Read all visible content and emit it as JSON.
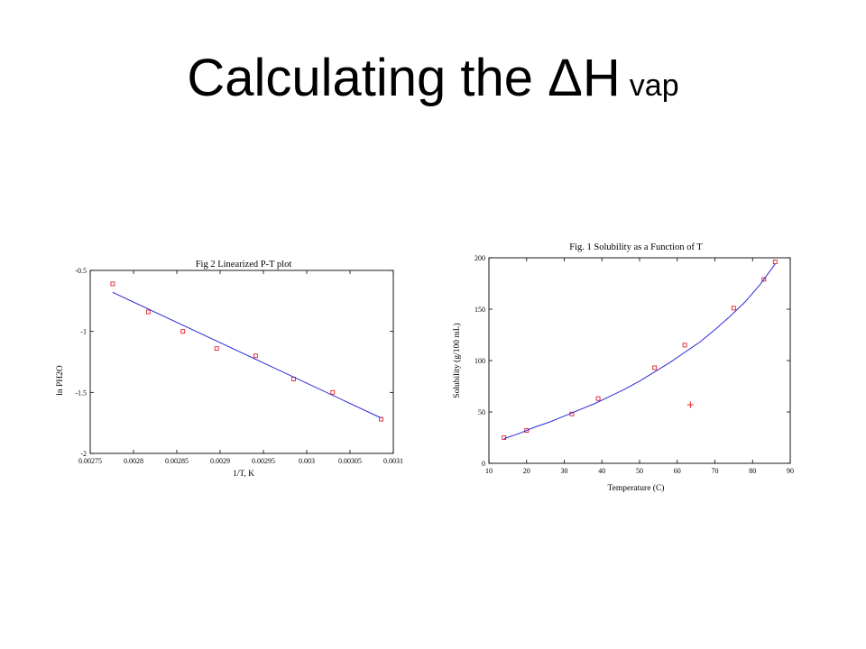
{
  "slide": {
    "title": "Calculating the ΔH",
    "title_sub": "vap"
  },
  "chart_data": [
    {
      "type": "scatter",
      "title": "Fig 2 Linearized P-T plot",
      "xlabel": "1/T, K",
      "ylabel": "ln PH2O",
      "xlim": [
        0.00275,
        0.0031
      ],
      "ylim": [
        -2,
        -0.5
      ],
      "x_ticks": [
        "0.00275",
        "0.0028",
        "0.00285",
        "0.0029",
        "0.00295",
        "0.003",
        "0.00305",
        "0.0031"
      ],
      "y_ticks": [
        "-0.5",
        "-1",
        "-1.5",
        "-2"
      ],
      "grid": false,
      "series": [
        {
          "kind": "points",
          "x": [
            0.002776,
            0.002817,
            0.002857,
            0.002896,
            0.002941,
            0.002985,
            0.00303,
            0.003086
          ],
          "y": [
            -0.61,
            -0.84,
            -1.0,
            -1.14,
            -1.2,
            -1.39,
            -1.5,
            -1.72
          ]
        },
        {
          "kind": "fit-line",
          "x": [
            0.002776,
            0.003086
          ],
          "y": [
            -0.68,
            -1.71
          ]
        }
      ]
    },
    {
      "type": "scatter",
      "title": "Fig. 1 Solubility as a Function of T",
      "xlabel": "Temperature (C)",
      "ylabel": "Solubility (g/100 mL)",
      "xlim": [
        10,
        90
      ],
      "ylim": [
        0,
        200
      ],
      "x_ticks": [
        "10",
        "20",
        "30",
        "40",
        "50",
        "60",
        "70",
        "80",
        "90"
      ],
      "y_ticks": [
        "0",
        "50",
        "100",
        "150",
        "200"
      ],
      "grid": false,
      "series": [
        {
          "kind": "points",
          "x": [
            14,
            20,
            32,
            39,
            54,
            62,
            75,
            83,
            86
          ],
          "y": [
            25,
            32,
            48,
            63,
            93,
            115,
            151,
            179,
            196
          ]
        },
        {
          "kind": "fit-curve",
          "x": [
            14,
            18,
            22,
            26,
            30,
            34,
            38,
            42,
            46,
            50,
            54,
            58,
            62,
            66,
            70,
            74,
            78,
            82,
            86
          ],
          "y": [
            24,
            29,
            35,
            40,
            46,
            52,
            58,
            65,
            72,
            80,
            89,
            98,
            108,
            118,
            130,
            143,
            157,
            174,
            194
          ]
        },
        {
          "kind": "marker-plus",
          "x": [
            63.5
          ],
          "y": [
            57
          ]
        }
      ]
    }
  ]
}
